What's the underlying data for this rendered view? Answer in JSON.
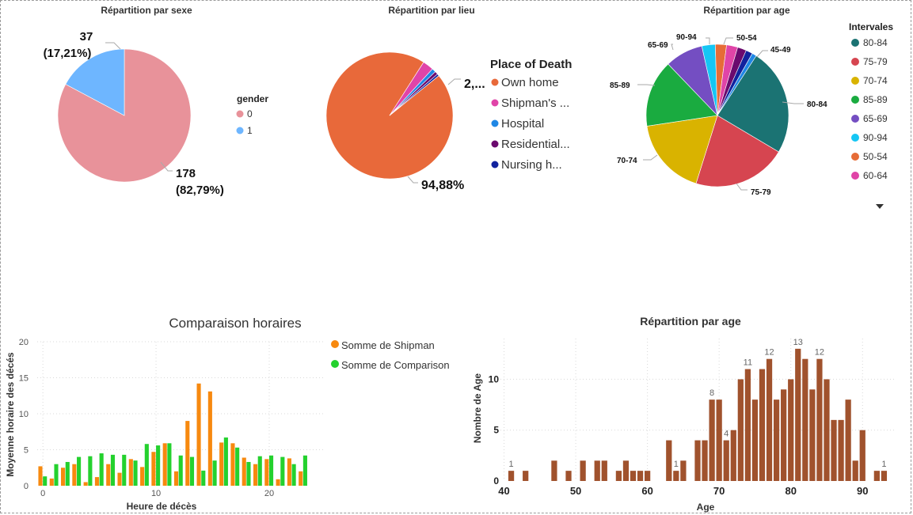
{
  "sex_chart": {
    "title": "Répartition par sexe",
    "legend_title": "gender",
    "slices": [
      {
        "label": "0",
        "value": 178,
        "value_text": "178",
        "pct_text": "(82,79%)",
        "color": "#E8929A"
      },
      {
        "label": "1",
        "value": 37,
        "value_text": "37",
        "pct_text": "(17,21%)",
        "color": "#6EB6FF"
      }
    ]
  },
  "place_chart": {
    "title": "Répartition par lieu",
    "legend_title": "Place of Death",
    "legend_items": [
      "Own home",
      "Shipman's ...",
      "Hospital",
      "Residential...",
      "Nursing h..."
    ],
    "slices": [
      {
        "value": 94.88,
        "color": "#E8693A"
      },
      {
        "value": 2.8,
        "color": "#E044A8"
      },
      {
        "value": 1.0,
        "color": "#1F87E5"
      },
      {
        "value": 0.8,
        "color": "#6B0A6E"
      },
      {
        "value": 0.52,
        "color": "#12239E"
      }
    ],
    "label_main": "94,88%",
    "label_small": "2,..."
  },
  "age_pie": {
    "title": "Répartition par age",
    "legend_title": "Intervales",
    "legend_items": [
      {
        "label": "80-84",
        "color": "#1B7373"
      },
      {
        "label": "75-79",
        "color": "#D64550"
      },
      {
        "label": "70-74",
        "color": "#D9B300"
      },
      {
        "label": "85-89",
        "color": "#1AAB40"
      },
      {
        "label": "65-69",
        "color": "#744EC2"
      },
      {
        "label": "90-94",
        "color": "#15C6F4"
      },
      {
        "label": "50-54",
        "color": "#E66C37"
      },
      {
        "label": "60-64",
        "color": "#E044A7"
      }
    ],
    "slices": [
      {
        "label": "80-84",
        "value": 48,
        "color": "#1B7373"
      },
      {
        "label": "75-79",
        "value": 42,
        "color": "#D64550"
      },
      {
        "label": "70-74",
        "value": 35,
        "color": "#D9B300"
      },
      {
        "label": "85-89",
        "value": 30,
        "color": "#1AAB40"
      },
      {
        "label": "65-69",
        "value": 17,
        "color": "#744EC2"
      },
      {
        "label": "90-94",
        "value": 6,
        "color": "#15C6F4"
      },
      {
        "label": "50-54",
        "value": 5,
        "color": "#E66C37"
      },
      {
        "label": "60-64",
        "value": 5,
        "color": "#E044A7"
      },
      {
        "label": "",
        "value": 4,
        "color": "#6B0A6E"
      },
      {
        "label": "",
        "value": 3,
        "color": "#12239E"
      },
      {
        "label": "45-49",
        "value": 2,
        "color": "#1F87E5"
      }
    ]
  },
  "hour_chart": {
    "title": "Comparaison horaires",
    "xlabel": "Heure de décès",
    "ylabel": "Moyenne horaire des décés",
    "ylim": [
      0,
      20
    ],
    "yticks": [
      "0",
      "5",
      "10",
      "15",
      "20"
    ],
    "xticks": [
      {
        "v": 0,
        "t": "0"
      },
      {
        "v": 10,
        "t": "10"
      },
      {
        "v": 20,
        "t": "20"
      }
    ],
    "series": [
      {
        "name": "Somme de Shipman",
        "color": "#F7890F",
        "values": [
          2.7,
          1.0,
          2.5,
          3.0,
          0.5,
          1.2,
          3.0,
          1.8,
          3.7,
          2.6,
          4.7,
          5.9,
          2.0,
          9.0,
          14.2,
          13.1,
          6.0,
          5.9,
          3.9,
          3.0,
          3.7,
          0.9,
          3.8,
          2.0
        ]
      },
      {
        "name": "Somme de Comparison",
        "color": "#24D12E",
        "values": [
          1.3,
          3.0,
          3.3,
          4.0,
          4.1,
          4.5,
          4.3,
          4.3,
          3.5,
          5.8,
          5.6,
          5.9,
          4.2,
          4.0,
          2.1,
          3.5,
          6.7,
          5.3,
          3.3,
          4.1,
          4.2,
          4.0,
          3.0,
          4.2
        ]
      }
    ]
  },
  "chart_data": {
    "type": "bar",
    "title": "Répartition par age",
    "xlabel": "Age",
    "ylabel": "Nombre de Age",
    "xlim": [
      40,
      94
    ],
    "ylim": [
      0,
      14
    ],
    "xticks": [
      40,
      50,
      60,
      70,
      80,
      90
    ],
    "yticks": [
      0,
      5,
      10
    ],
    "color": "#A0522D",
    "x": [
      41,
      43,
      47,
      49,
      51,
      53,
      54,
      56,
      57,
      58,
      59,
      60,
      63,
      64,
      65,
      67,
      68,
      69,
      70,
      71,
      72,
      73,
      74,
      75,
      76,
      77,
      78,
      79,
      80,
      81,
      82,
      83,
      84,
      85,
      86,
      87,
      88,
      89,
      90,
      92,
      93
    ],
    "values": [
      1,
      1,
      2,
      1,
      2,
      2,
      2,
      1,
      2,
      1,
      1,
      1,
      4,
      1,
      2,
      4,
      4,
      8,
      8,
      4,
      5,
      10,
      11,
      8,
      11,
      12,
      8,
      9,
      10,
      13,
      12,
      9,
      12,
      10,
      6,
      6,
      8,
      2,
      5,
      1,
      1
    ],
    "data_labels": [
      {
        "x": 41,
        "text": "1"
      },
      {
        "x": 64,
        "text": "1"
      },
      {
        "x": 69,
        "text": "8"
      },
      {
        "x": 71,
        "text": "4"
      },
      {
        "x": 74,
        "text": "11"
      },
      {
        "x": 77,
        "text": "12"
      },
      {
        "x": 81,
        "text": "13"
      },
      {
        "x": 84,
        "text": "12"
      },
      {
        "x": 93,
        "text": "1"
      }
    ]
  }
}
